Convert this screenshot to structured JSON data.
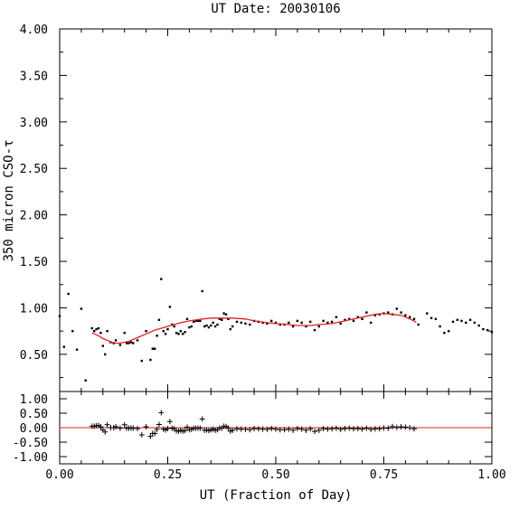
{
  "chart_data": [
    {
      "type": "scatter",
      "title": "UT Date: 20030106",
      "xlabel": "",
      "ylabel": "350 micron CSO-τ",
      "xlim": [
        0.0,
        1.0
      ],
      "ylim": [
        0.1,
        4.0
      ],
      "xticks": [
        0.0,
        0.25,
        0.5,
        0.75,
        1.0
      ],
      "xtick_labels": [],
      "yticks": [
        0.5,
        1.0,
        1.5,
        2.0,
        2.5,
        3.0,
        3.5,
        4.0
      ],
      "ytick_labels": [
        "0.50",
        "1.00",
        "1.50",
        "2.00",
        "2.50",
        "3.00",
        "3.50",
        "4.00"
      ],
      "grid": false,
      "series": [
        {
          "marker": "dot",
          "color": "#000000",
          "x": [
            0.0,
            0.01,
            0.02,
            0.03,
            0.04,
            0.05,
            0.06,
            0.075,
            0.08,
            0.085,
            0.09,
            0.095,
            0.1,
            0.105,
            0.11,
            0.118,
            0.125,
            0.13,
            0.14,
            0.15,
            0.155,
            0.16,
            0.165,
            0.17,
            0.18,
            0.19,
            0.2,
            0.21,
            0.215,
            0.22,
            0.225,
            0.23,
            0.235,
            0.24,
            0.245,
            0.25,
            0.255,
            0.26,
            0.265,
            0.27,
            0.275,
            0.28,
            0.285,
            0.29,
            0.295,
            0.3,
            0.305,
            0.31,
            0.315,
            0.32,
            0.325,
            0.33,
            0.335,
            0.34,
            0.345,
            0.35,
            0.355,
            0.36,
            0.365,
            0.37,
            0.375,
            0.38,
            0.385,
            0.39,
            0.395,
            0.4,
            0.41,
            0.42,
            0.43,
            0.44,
            0.45,
            0.46,
            0.47,
            0.48,
            0.49,
            0.5,
            0.51,
            0.52,
            0.53,
            0.54,
            0.55,
            0.56,
            0.57,
            0.58,
            0.59,
            0.6,
            0.61,
            0.62,
            0.63,
            0.64,
            0.65,
            0.66,
            0.67,
            0.68,
            0.69,
            0.7,
            0.71,
            0.72,
            0.73,
            0.74,
            0.75,
            0.76,
            0.77,
            0.78,
            0.79,
            0.8,
            0.81,
            0.82,
            0.83,
            0.85,
            0.86,
            0.87,
            0.88,
            0.89,
            0.9,
            0.91,
            0.92,
            0.93,
            0.94,
            0.95,
            0.96,
            0.97,
            0.98,
            0.99,
            1.0
          ],
          "y": [
            0.91,
            0.58,
            1.15,
            0.75,
            0.55,
            0.99,
            0.22,
            0.78,
            0.75,
            0.77,
            0.78,
            0.73,
            0.59,
            0.5,
            0.75,
            0.63,
            0.62,
            0.65,
            0.6,
            0.73,
            0.62,
            0.62,
            0.63,
            0.62,
            0.65,
            0.43,
            0.75,
            0.44,
            0.56,
            0.56,
            0.7,
            0.87,
            1.31,
            0.75,
            0.72,
            0.77,
            1.01,
            0.82,
            0.8,
            0.73,
            0.72,
            0.75,
            0.72,
            0.74,
            0.88,
            0.79,
            0.8,
            0.85,
            0.86,
            0.86,
            0.86,
            1.18,
            0.8,
            0.81,
            0.79,
            0.81,
            0.84,
            0.8,
            0.82,
            0.88,
            0.87,
            0.94,
            0.93,
            0.88,
            0.77,
            0.8,
            0.85,
            0.84,
            0.83,
            0.82,
            0.86,
            0.85,
            0.84,
            0.83,
            0.86,
            0.84,
            0.82,
            0.82,
            0.84,
            0.8,
            0.86,
            0.84,
            0.8,
            0.85,
            0.76,
            0.8,
            0.86,
            0.84,
            0.85,
            0.9,
            0.83,
            0.87,
            0.88,
            0.86,
            0.9,
            0.88,
            0.95,
            0.84,
            0.92,
            0.93,
            0.94,
            0.95,
            0.93,
            0.99,
            0.95,
            0.92,
            0.9,
            0.88,
            0.82,
            0.94,
            0.89,
            0.88,
            0.8,
            0.73,
            0.75,
            0.85,
            0.87,
            0.86,
            0.84,
            0.87,
            0.84,
            0.81,
            0.77,
            0.76,
            0.74
          ]
        },
        {
          "marker": "line",
          "color": "#e02020",
          "x": [
            0.075,
            0.09,
            0.1,
            0.11,
            0.12,
            0.13,
            0.14,
            0.15,
            0.16,
            0.18,
            0.2,
            0.22,
            0.25,
            0.28,
            0.3,
            0.33,
            0.35,
            0.38,
            0.4,
            0.43,
            0.45,
            0.48,
            0.5,
            0.53,
            0.55,
            0.58,
            0.6,
            0.63,
            0.65,
            0.68,
            0.7,
            0.73,
            0.75,
            0.77,
            0.79,
            0.8,
            0.82,
            0.825
          ],
          "y": [
            0.73,
            0.7,
            0.67,
            0.65,
            0.63,
            0.62,
            0.62,
            0.63,
            0.64,
            0.68,
            0.72,
            0.76,
            0.8,
            0.84,
            0.86,
            0.88,
            0.89,
            0.89,
            0.89,
            0.88,
            0.86,
            0.84,
            0.83,
            0.82,
            0.81,
            0.81,
            0.82,
            0.83,
            0.85,
            0.88,
            0.9,
            0.93,
            0.94,
            0.93,
            0.92,
            0.9,
            0.86,
            0.84
          ]
        }
      ]
    },
    {
      "type": "scatter",
      "title": "",
      "xlabel": "UT (Fraction of Day)",
      "ylabel": "",
      "xlim": [
        0.0,
        1.0
      ],
      "ylim": [
        -1.25,
        1.25
      ],
      "xticks": [
        0.0,
        0.25,
        0.5,
        0.75,
        1.0
      ],
      "xtick_labels": [
        "0.00",
        "0.25",
        "0.50",
        "0.75",
        "1.00"
      ],
      "yticks": [
        1.0,
        0.5,
        0.0,
        -0.5,
        -1.0
      ],
      "ytick_labels": [
        "1.00",
        "0.50",
        "0.00",
        "-0.50",
        "-1.00"
      ],
      "reference_line": {
        "y": 0.0,
        "color": "#e02020"
      },
      "series": [
        {
          "marker": "plus",
          "color": "#000000",
          "x": [
            0.075,
            0.08,
            0.085,
            0.09,
            0.095,
            0.1,
            0.105,
            0.11,
            0.118,
            0.125,
            0.13,
            0.14,
            0.15,
            0.155,
            0.16,
            0.165,
            0.17,
            0.18,
            0.19,
            0.2,
            0.21,
            0.215,
            0.22,
            0.225,
            0.23,
            0.235,
            0.24,
            0.245,
            0.25,
            0.255,
            0.26,
            0.265,
            0.27,
            0.275,
            0.28,
            0.285,
            0.29,
            0.295,
            0.3,
            0.305,
            0.31,
            0.315,
            0.32,
            0.325,
            0.33,
            0.335,
            0.34,
            0.345,
            0.35,
            0.355,
            0.36,
            0.365,
            0.37,
            0.375,
            0.38,
            0.385,
            0.39,
            0.395,
            0.4,
            0.41,
            0.42,
            0.43,
            0.44,
            0.45,
            0.46,
            0.47,
            0.48,
            0.49,
            0.5,
            0.51,
            0.52,
            0.53,
            0.54,
            0.55,
            0.56,
            0.57,
            0.58,
            0.59,
            0.6,
            0.61,
            0.62,
            0.63,
            0.64,
            0.65,
            0.66,
            0.67,
            0.68,
            0.69,
            0.7,
            0.71,
            0.72,
            0.73,
            0.74,
            0.75,
            0.76,
            0.77,
            0.78,
            0.79,
            0.8,
            0.81,
            0.82
          ],
          "y": [
            0.05,
            0.05,
            0.07,
            0.08,
            0.03,
            -0.08,
            -0.15,
            0.1,
            0.0,
            0.0,
            0.03,
            -0.02,
            0.1,
            -0.02,
            -0.02,
            -0.01,
            -0.02,
            -0.03,
            -0.25,
            0.03,
            -0.3,
            -0.2,
            -0.2,
            -0.06,
            0.11,
            0.52,
            -0.05,
            -0.08,
            -0.03,
            0.21,
            -0.02,
            -0.04,
            -0.11,
            -0.12,
            -0.09,
            -0.12,
            -0.1,
            0.02,
            -0.07,
            -0.06,
            -0.02,
            -0.02,
            -0.02,
            -0.02,
            0.3,
            -0.09,
            -0.08,
            -0.1,
            -0.08,
            -0.05,
            -0.09,
            -0.07,
            -0.01,
            -0.02,
            0.05,
            0.04,
            -0.01,
            -0.12,
            -0.09,
            -0.04,
            -0.05,
            -0.06,
            -0.07,
            -0.03,
            -0.04,
            -0.05,
            -0.06,
            -0.03,
            -0.05,
            -0.07,
            -0.07,
            -0.05,
            -0.09,
            -0.03,
            -0.05,
            -0.09,
            -0.04,
            -0.13,
            -0.09,
            -0.03,
            -0.05,
            -0.04,
            -0.02,
            -0.06,
            -0.03,
            -0.02,
            -0.04,
            -0.03,
            -0.05,
            -0.02,
            -0.06,
            -0.04,
            -0.04,
            -0.01,
            -0.02,
            0.04,
            0.01,
            0.03,
            0.02,
            0.0,
            -0.04
          ]
        }
      ]
    }
  ]
}
